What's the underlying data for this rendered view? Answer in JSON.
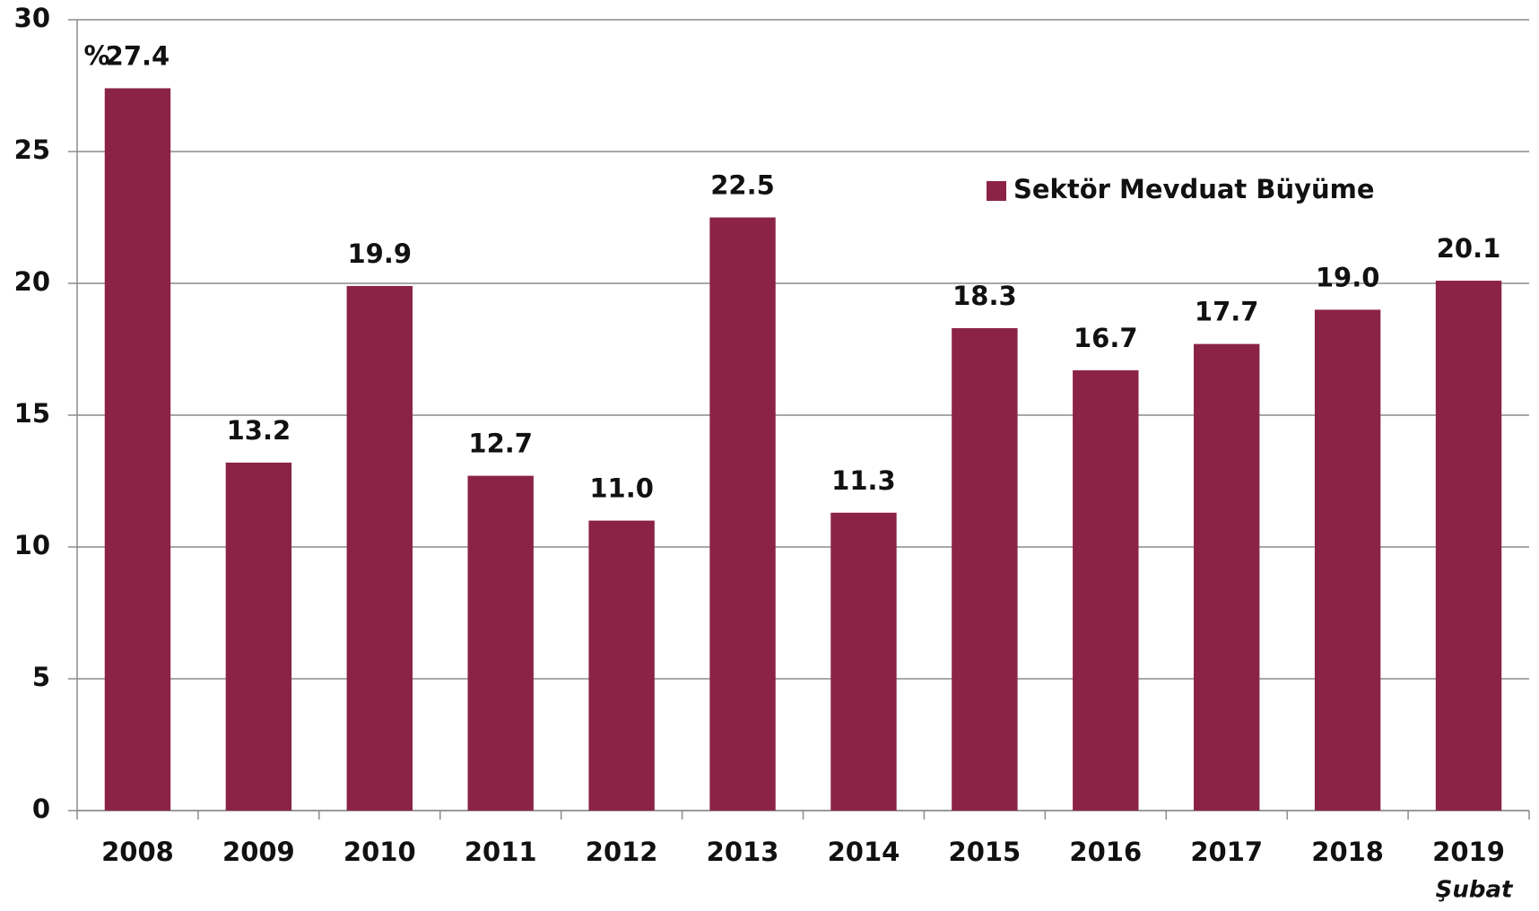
{
  "chart_data": {
    "type": "bar",
    "ylabel": "%",
    "categories": [
      "2008",
      "2009",
      "2010",
      "2011",
      "2012",
      "2013",
      "2014",
      "2015",
      "2016",
      "2017",
      "2018",
      "2019"
    ],
    "annotation": "Şubat",
    "series": [
      {
        "name": "Sektör Mevduat Büyüme",
        "color": "#8b2346",
        "values": [
          27.4,
          13.2,
          19.9,
          12.7,
          11.0,
          22.5,
          11.3,
          18.3,
          16.7,
          17.7,
          19.0,
          20.1
        ],
        "value_labels": [
          "27.4",
          "13.2",
          "19.9",
          "12.7",
          "11.0",
          "22.5",
          "11.3",
          "18.3",
          "16.7",
          "17.7",
          "19.0",
          "20.1"
        ]
      }
    ],
    "ylim": [
      0,
      30
    ],
    "yticks": [
      0,
      5,
      10,
      15,
      20,
      25,
      30
    ],
    "grid": true,
    "legend": "upper right"
  }
}
